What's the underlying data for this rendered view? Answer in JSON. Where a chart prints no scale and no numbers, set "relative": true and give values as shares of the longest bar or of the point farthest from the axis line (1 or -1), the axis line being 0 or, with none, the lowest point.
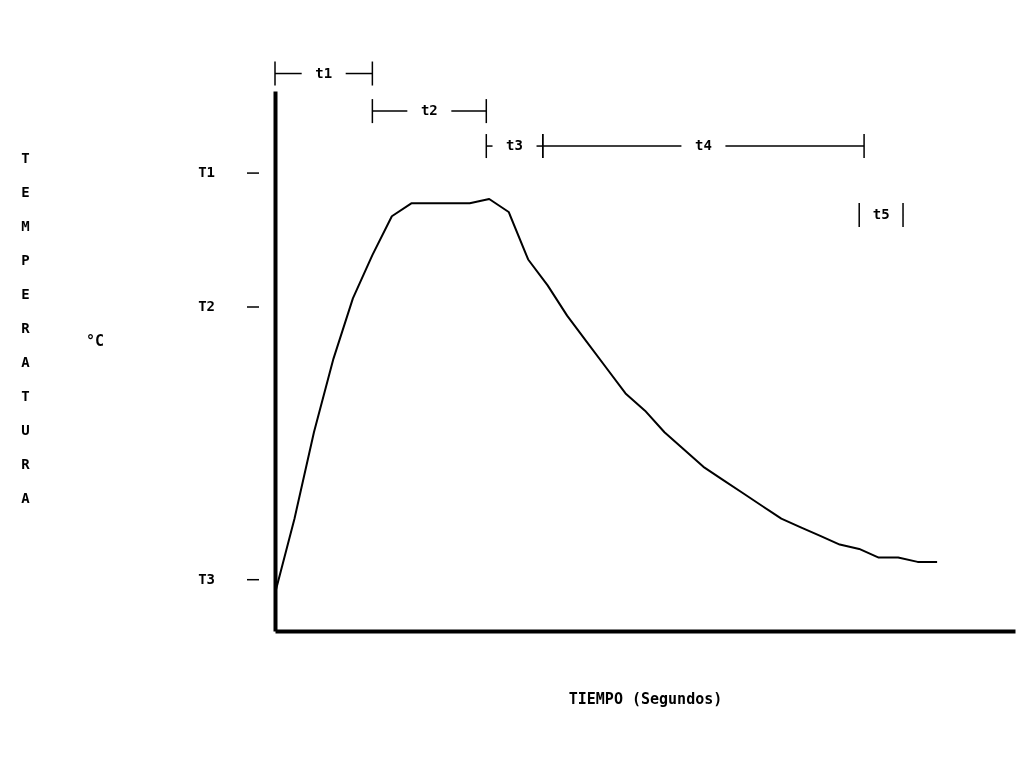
{
  "chart_data": {
    "type": "line",
    "relative": true,
    "categories": [
      null,
      null,
      null,
      null,
      null,
      null,
      null,
      null,
      null,
      null,
      null,
      null,
      null,
      null,
      null,
      null,
      null,
      null,
      null,
      null,
      null,
      null,
      null,
      null,
      null,
      null,
      null,
      null,
      null,
      null,
      null,
      null,
      null,
      null,
      null,
      null,
      null,
      null,
      null
    ],
    "values": [
      0.087,
      0.26,
      0.46,
      0.63,
      0.77,
      0.87,
      0.96,
      0.99,
      0.99,
      0.99,
      0.99,
      1.0,
      0.97,
      0.86,
      0.8,
      0.73,
      0.67,
      0.61,
      0.55,
      0.51,
      0.46,
      0.42,
      0.38,
      0.35,
      0.32,
      0.29,
      0.26,
      0.24,
      0.22,
      0.2,
      0.19,
      0.17,
      0.17,
      0.16,
      0.16,
      null,
      null,
      null,
      null
    ],
    "color": "#000000",
    "ylabel": "TEMPERATURA",
    "xlabel": "TIEMPO (Segundos)",
    "annotations": [
      "°C",
      "t1",
      "t2",
      "t3",
      "t4",
      "t5",
      "T1",
      "T2",
      "T3"
    ],
    "grid": false,
    "marker": "none",
    "line_style": "solid"
  }
}
